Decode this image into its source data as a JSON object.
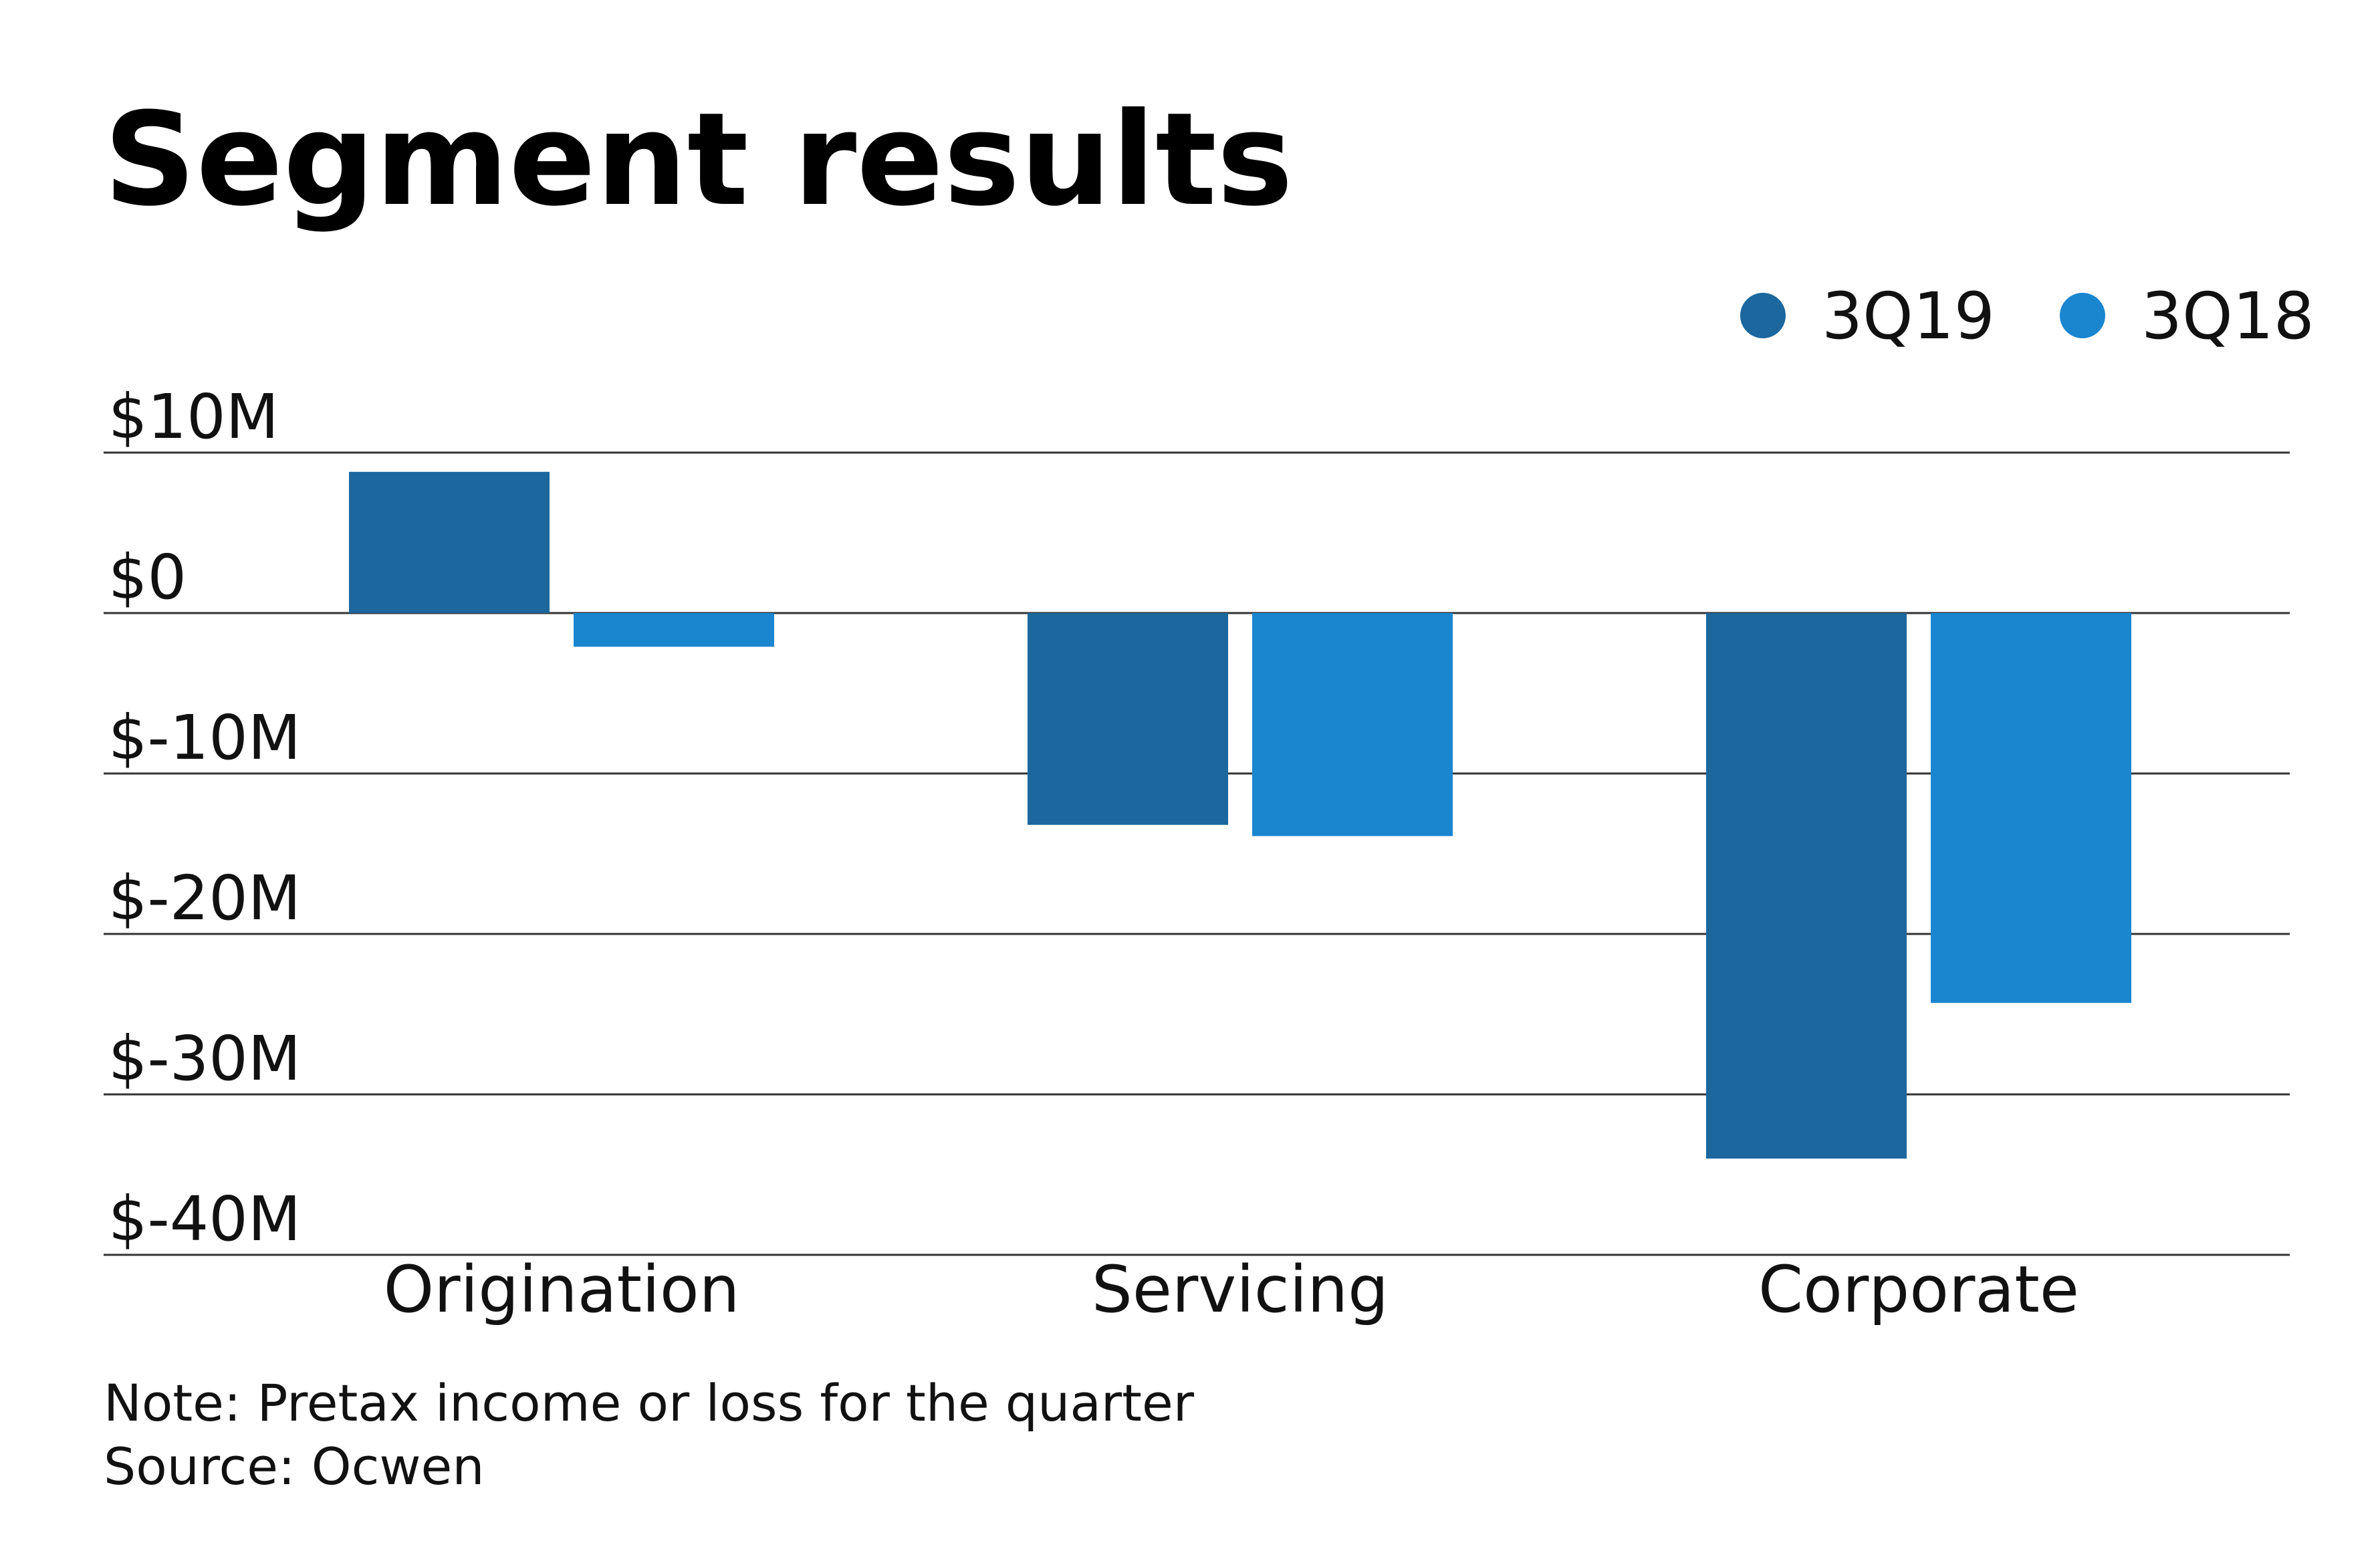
{
  "chart_data": {
    "type": "bar",
    "title": "Segment results",
    "categories": [
      "Origination",
      "Servicing",
      "Corporate"
    ],
    "series": [
      {
        "name": "3Q19",
        "color": "#1b679e",
        "values": [
          8.8,
          -13.2,
          -34.0
        ]
      },
      {
        "name": "3Q18",
        "color": "#1a86d0",
        "values": [
          -2.1,
          -13.9,
          -24.3
        ]
      }
    ],
    "ylim": [
      -40,
      10
    ],
    "yticks": [
      10,
      0,
      -10,
      -20,
      -30,
      -40
    ],
    "ytick_labels": [
      "$10M",
      "$0",
      "$-10M",
      "$-20M",
      "$-30M",
      "$-40M"
    ],
    "grid": true,
    "legend_position": "top-right",
    "xlabel": "",
    "ylabel": ""
  },
  "footer": {
    "note": "Note: Pretax income or loss for the quarter",
    "source": "Source: Ocwen"
  }
}
